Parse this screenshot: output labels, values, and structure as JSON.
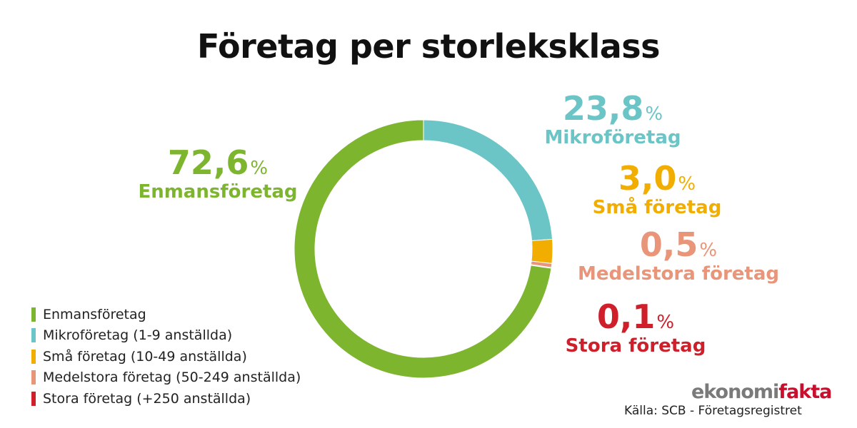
{
  "chart_data": {
    "type": "pie",
    "title": "Företag per storleksklass",
    "slices": [
      {
        "label": "Enmansföretag",
        "value": 72.6,
        "value_text": "72,6",
        "color": "#7db52f",
        "legend": "Enmansföretag"
      },
      {
        "label": "Mikroföretag",
        "value": 23.8,
        "value_text": "23,8",
        "color": "#6bc4c6",
        "legend": "Mikroföretag (1-9 anställda)"
      },
      {
        "label": "Små företag",
        "value": 3.0,
        "value_text": "3,0",
        "color": "#f2ae00",
        "legend": "Små företag (10-49 anställda)"
      },
      {
        "label": "Medelstora företag",
        "value": 0.5,
        "value_text": "0,5",
        "color": "#e8957a",
        "legend": "Medelstora företag (50-249 anställda)"
      },
      {
        "label": "Stora företag",
        "value": 0.1,
        "value_text": "0,1",
        "color": "#cf1f2b",
        "legend": "Stora företag (+250 anställda)"
      }
    ],
    "percent_sign": "%",
    "hole": "donut"
  },
  "logo": {
    "part1": "ekonomi",
    "part2": "fakta"
  },
  "source": "Källa: SCB - Företagsregistret"
}
